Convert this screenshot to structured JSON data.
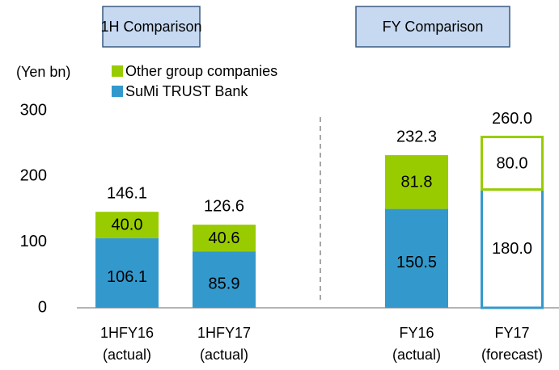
{
  "chart_data": {
    "type": "stacked_bar",
    "y_label": "(Yen bn)",
    "group_labels": [
      "1H Comparison",
      "FY Comparison"
    ],
    "categories": [
      [
        "1HFY16",
        "(actual)"
      ],
      [
        "1HFY17",
        "(actual)"
      ],
      [
        "FY16",
        "(actual)"
      ],
      [
        "FY17",
        "(forecast)"
      ]
    ],
    "series": [
      {
        "name": "SuMi TRUST  Bank",
        "color": "#3399cc",
        "values": [
          106.1,
          85.9,
          150.5,
          180.0
        ],
        "value_labels": [
          "106.1",
          "85.9",
          "150.5",
          "180.0"
        ]
      },
      {
        "name": "Other group companies",
        "color": "#99cc00",
        "values": [
          40.0,
          40.6,
          81.8,
          80.0
        ],
        "value_labels": [
          "40.0",
          "40.6",
          "81.8",
          "80.0"
        ]
      }
    ],
    "totals": [
      146.1,
      126.6,
      232.3,
      260.0
    ],
    "total_labels": [
      "146.1",
      "126.6",
      "232.3",
      "260.0"
    ],
    "hollow": [
      false,
      false,
      false,
      true
    ],
    "ylim": [
      0,
      300
    ],
    "yticks": [
      0,
      100,
      200,
      300
    ],
    "grid": false
  }
}
